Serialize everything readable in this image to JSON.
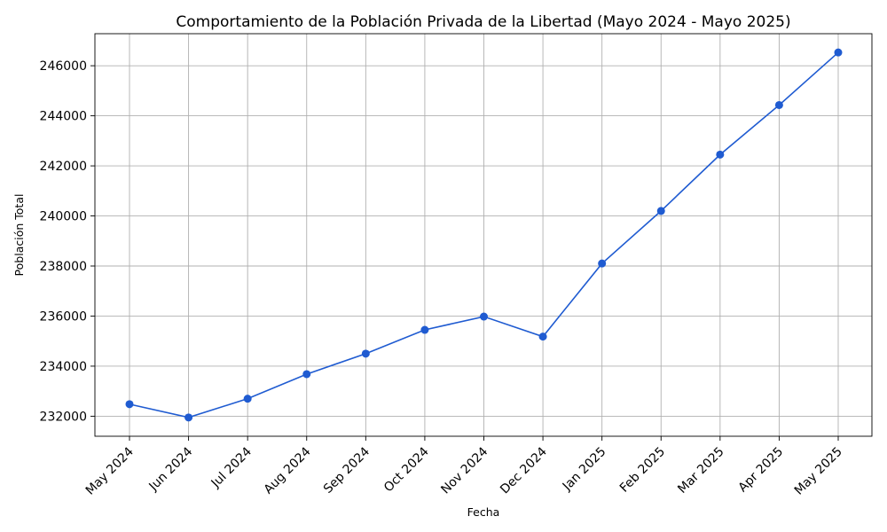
{
  "chart_data": {
    "type": "line",
    "title": "Comportamiento de la Población Privada de la Libertad (Mayo 2024 - Mayo 2025)",
    "xlabel": "Fecha",
    "ylabel": "Población Total",
    "categories": [
      "May 2024",
      "Jun 2024",
      "Jul 2024",
      "Aug 2024",
      "Sep 2024",
      "Oct 2024",
      "Nov 2024",
      "Dec 2024",
      "Jan 2025",
      "Feb 2025",
      "Mar 2025",
      "Apr 2025",
      "May 2025"
    ],
    "series": [
      {
        "values": [
          232480,
          231950,
          232700,
          233680,
          234500,
          235450,
          235980,
          235180,
          238100,
          240200,
          242450,
          244430,
          246530
        ],
        "color": "#1f5bd1",
        "marker": "circle"
      }
    ],
    "yticks": [
      232000,
      234000,
      236000,
      238000,
      240000,
      242000,
      244000,
      246000
    ],
    "ylim": [
      231200,
      247280
    ],
    "grid": true,
    "line_color": "#1f5bd1"
  }
}
